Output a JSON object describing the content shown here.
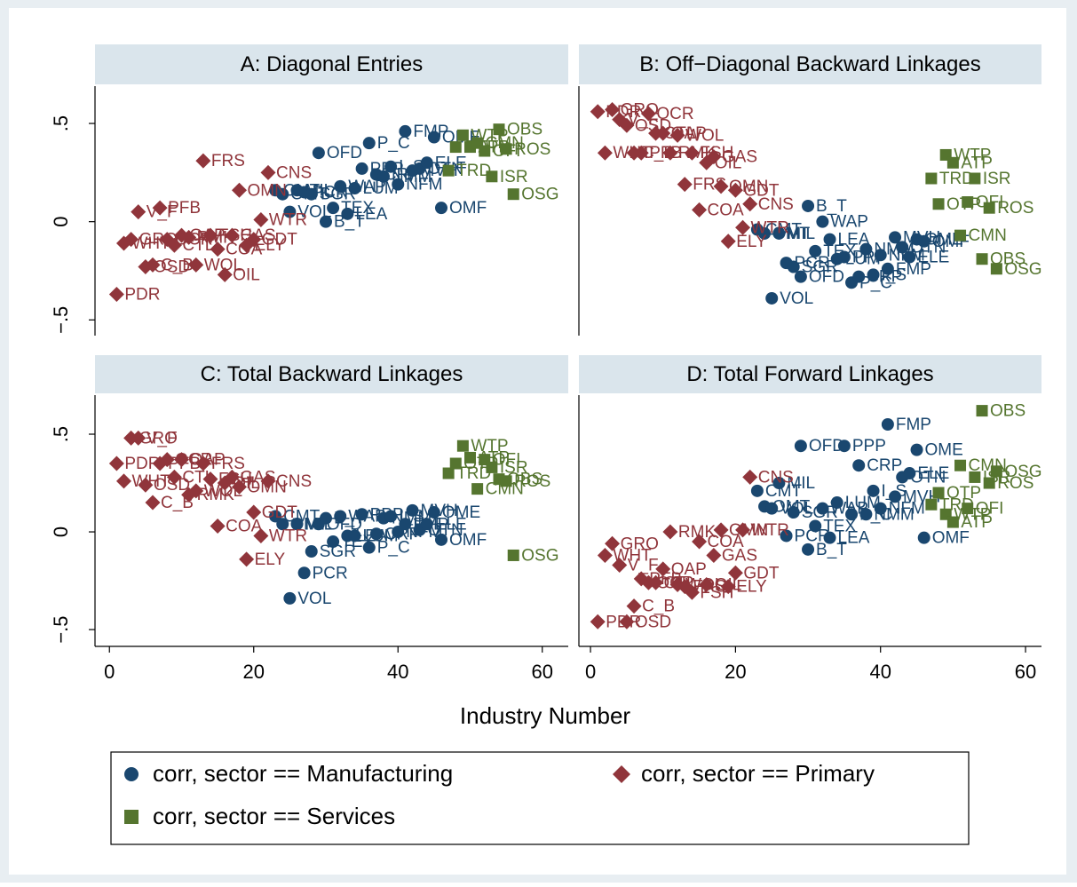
{
  "chart_data": [
    {
      "type": "scatter",
      "title": "A: Diagonal Entries",
      "xlim": [
        -2,
        63.6
      ],
      "ylim": [
        -0.58,
        0.69
      ],
      "yticks": [
        {
          "value": -0.5,
          "label": "−.5"
        },
        0,
        {
          "value": 0.5,
          "label": ".5"
        }
      ],
      "series": [
        {
          "name": "corr, sector == Manufacturing",
          "color": "#1a476f",
          "marker": "circle",
          "x": [
            23,
            24,
            25,
            26,
            27,
            28,
            29,
            30,
            31,
            32,
            33,
            34,
            35,
            36,
            37,
            38,
            39,
            40,
            41,
            42,
            43,
            44,
            45,
            46
          ],
          "values": [
            0.16,
            0.14,
            0.05,
            0.16,
            0.15,
            0.14,
            0.35,
            0,
            0.07,
            0.18,
            0.04,
            0.17,
            0.27,
            0.4,
            0.24,
            0.23,
            0.28,
            0.19,
            0.46,
            0.26,
            0.27,
            0.3,
            0.43,
            0.07
          ],
          "labels": [
            "CMT",
            "OMT",
            "VOL",
            "MIL",
            "PCR",
            "SGR",
            "OFD",
            "B_T",
            "TEX",
            "WAP",
            "LEA",
            "LUM",
            "PPP",
            "P_C",
            "CRP",
            "NMM",
            "I_S",
            "NFM",
            "FMP",
            "MVH",
            "OTN",
            "ELE",
            "OME",
            "OMF"
          ]
        },
        {
          "name": "corr, sector == Primary",
          "color": "#90353b",
          "marker": "diamond",
          "x": [
            1,
            2,
            3,
            4,
            5,
            6,
            7,
            8,
            9,
            10,
            11,
            12,
            13,
            14,
            15,
            16,
            17,
            18,
            19,
            20,
            21,
            22
          ],
          "values": [
            -0.37,
            -0.11,
            -0.09,
            0.05,
            -0.23,
            -0.22,
            0.07,
            -0.09,
            -0.12,
            -0.07,
            -0.08,
            -0.22,
            0.31,
            -0.07,
            -0.14,
            -0.27,
            -0.07,
            0.16,
            -0.12,
            -0.09,
            0.01,
            0.25
          ],
          "labels": [
            "PDR",
            "WHT",
            "GRO",
            "V_F",
            "OSD",
            "C_B",
            "PFB",
            "OCR",
            "CTL",
            "OAP",
            "RMK",
            "WOL",
            "FRS",
            "FSH",
            "COA",
            "OIL",
            "GAS",
            "OMN",
            "ELY",
            "GDT",
            "WTR",
            "CNS"
          ]
        },
        {
          "name": "corr, sector == Services",
          "color": "#55752f",
          "marker": "square",
          "x": [
            47,
            48,
            49,
            50,
            51,
            52,
            53,
            54,
            55,
            56
          ],
          "values": [
            0.26,
            0.38,
            0.44,
            0.38,
            0.4,
            0.36,
            0.23,
            0.47,
            0.37,
            0.14
          ],
          "labels": [
            "TRD",
            "OTP",
            "WTP",
            "ATP",
            "CMN",
            "OFI",
            "ISR",
            "OBS",
            "ROS",
            "OSG"
          ]
        }
      ]
    },
    {
      "type": "scatter",
      "title": "B: Off−Diagonal Backward Linkages",
      "xlim": [
        -1.6,
        62.2
      ],
      "ylim": [
        -0.58,
        0.69
      ],
      "series": [
        {
          "color": "#1a476f",
          "marker": "circle",
          "x": [
            23,
            24,
            25,
            26,
            27,
            28,
            29,
            30,
            31,
            32,
            33,
            34,
            35,
            36,
            37,
            38,
            39,
            40,
            41,
            42,
            43,
            44,
            45,
            46
          ],
          "values": [
            -0.04,
            -0.06,
            -0.39,
            -0.06,
            -0.21,
            -0.23,
            -0.28,
            0.08,
            -0.15,
            0,
            -0.09,
            -0.19,
            -0.18,
            -0.31,
            -0.28,
            -0.14,
            -0.27,
            -0.17,
            -0.24,
            -0.08,
            -0.13,
            -0.18,
            -0.09,
            -0.1
          ],
          "labels": [
            "CMT",
            "OMT",
            "VOL",
            "MIL",
            "PCR",
            "SGR",
            "OFD",
            "B_T",
            "TEX",
            "WAP",
            "LEA",
            "LUM",
            "PPP",
            "P_C",
            "CRP",
            "NMM",
            "I_S",
            "NFM",
            "FMP",
            "MVH",
            "OTN",
            "ELE",
            "OME",
            "OMF"
          ]
        },
        {
          "color": "#90353b",
          "marker": "diamond",
          "x": [
            1,
            2,
            3,
            4,
            5,
            6,
            7,
            8,
            9,
            10,
            11,
            12,
            13,
            14,
            15,
            16,
            17,
            18,
            19,
            20,
            21,
            22
          ],
          "values": [
            0.56,
            0.35,
            0.57,
            0.52,
            0.49,
            0.35,
            0.35,
            0.55,
            0.45,
            0.45,
            0.35,
            0.44,
            0.19,
            0.35,
            0.06,
            0.3,
            0.33,
            0.18,
            -0.1,
            0.16,
            -0.03,
            0.09
          ],
          "labels": [
            "PDR",
            "WHT",
            "GRO",
            "V_F",
            "OSD",
            "C_B",
            "PFB",
            "OCR",
            "CTL",
            "OAP",
            "RMK",
            "WOL",
            "FRS",
            "FSH",
            "COA",
            "OIL",
            "GAS",
            "OMN",
            "ELY",
            "GDT",
            "WTR",
            "CNS"
          ]
        },
        {
          "color": "#55752f",
          "marker": "square",
          "x": [
            47,
            48,
            49,
            50,
            51,
            52,
            53,
            54,
            55,
            56
          ],
          "values": [
            0.22,
            0.09,
            0.34,
            0.3,
            -0.07,
            0.1,
            0.22,
            -0.19,
            0.07,
            -0.24
          ],
          "labels": [
            "TRD",
            "OTP",
            "WTP",
            "ATP",
            "CMN",
            "OFI",
            "ISR",
            "OBS",
            "ROS",
            "OSG"
          ]
        }
      ]
    },
    {
      "type": "scatter",
      "title": "C: Total Backward Linkages",
      "x_label": "Industry Number",
      "xlim": [
        -2,
        63.6
      ],
      "ylim": [
        -0.586,
        0.7
      ],
      "xticks": [
        0,
        20,
        40,
        60
      ],
      "yticks": [
        {
          "value": -0.5,
          "label": "−.5"
        },
        0,
        {
          "value": 0.5,
          "label": ".5"
        }
      ],
      "series": [
        {
          "color": "#1a476f",
          "marker": "circle",
          "x": [
            23,
            24,
            25,
            26,
            27,
            28,
            29,
            30,
            31,
            32,
            33,
            34,
            35,
            36,
            37,
            38,
            39,
            40,
            41,
            42,
            43,
            44,
            45,
            46
          ],
          "values": [
            0.08,
            0.04,
            -0.34,
            0.04,
            -0.21,
            -0.1,
            0.04,
            0.07,
            -0.05,
            0.08,
            -0.02,
            -0.02,
            0.09,
            -0.08,
            -0.01,
            0.07,
            0.08,
            0,
            0.04,
            0.11,
            0.01,
            0.04,
            0.1,
            -0.04
          ],
          "labels": [
            "CMT",
            "OMT",
            "VOL",
            "MIL",
            "PCR",
            "SGR",
            "OFD",
            "B_T",
            "TEX",
            "WAP",
            "LEA",
            "LUM",
            "PPP",
            "P_C",
            "CRP",
            "NMM",
            "I_S",
            "NFM",
            "FMP",
            "MVH",
            "OTN",
            "ELE",
            "OME",
            "OMF"
          ]
        },
        {
          "color": "#90353b",
          "marker": "diamond",
          "x": [
            1,
            2,
            3,
            4,
            5,
            6,
            7,
            8,
            9,
            10,
            11,
            12,
            13,
            14,
            15,
            16,
            17,
            18,
            19,
            20,
            21,
            22
          ],
          "values": [
            0.35,
            0.26,
            0.48,
            0.48,
            0.24,
            0.15,
            0.35,
            0.37,
            0.28,
            0.37,
            0.19,
            0.21,
            0.35,
            0.27,
            0.03,
            0.25,
            0.28,
            0.23,
            -0.14,
            0.1,
            -0.02,
            0.26
          ],
          "labels": [
            "PDR",
            "WHT",
            "GRO",
            "V_F",
            "OSD",
            "C_B",
            "PFB",
            "OCR",
            "CTL",
            "OAP",
            "RMK",
            "WOL",
            "FRS",
            "FSH",
            "COA",
            "OIL",
            "GAS",
            "OMN",
            "ELY",
            "GDT",
            "WTR",
            "CNS"
          ]
        },
        {
          "color": "#55752f",
          "marker": "square",
          "x": [
            47,
            48,
            49,
            50,
            51,
            52,
            53,
            54,
            55,
            56
          ],
          "values": [
            0.3,
            0.35,
            0.44,
            0.38,
            0.22,
            0.37,
            0.33,
            0.27,
            0.26,
            -0.12
          ],
          "labels": [
            "TRD",
            "OTP",
            "WTP",
            "ATP",
            "CMN",
            "OFI",
            "ISR",
            "OBS",
            "ROS",
            "OSG"
          ]
        }
      ]
    },
    {
      "type": "scatter",
      "title": "D: Total Forward Linkages",
      "xlim": [
        -1.6,
        62.2
      ],
      "ylim": [
        -0.586,
        0.7
      ],
      "xticks": [
        0,
        20,
        40,
        60
      ],
      "series": [
        {
          "color": "#1a476f",
          "marker": "circle",
          "x": [
            23,
            24,
            25,
            26,
            27,
            28,
            29,
            30,
            31,
            32,
            33,
            34,
            35,
            36,
            37,
            38,
            39,
            40,
            41,
            42,
            43,
            44,
            45,
            46
          ],
          "values": [
            0.21,
            0.13,
            0.12,
            0.25,
            -0.02,
            0.1,
            0.44,
            -0.09,
            0.03,
            0.12,
            -0.03,
            0.15,
            0.44,
            0.09,
            0.34,
            0.09,
            0.21,
            0.12,
            0.55,
            0.18,
            0.28,
            0.3,
            0.42,
            -0.03
          ],
          "labels": [
            "CMT",
            "OMT",
            "VOL",
            "MIL",
            "PCR",
            "SGR",
            "OFD",
            "B_T",
            "TEX",
            "WAP",
            "LEA",
            "LUM",
            "PPP",
            "P_C",
            "CRP",
            "NMM",
            "I_S",
            "NFM",
            "FMP",
            "MVH",
            "OTN",
            "ELE",
            "OME",
            "OMF"
          ]
        },
        {
          "color": "#90353b",
          "marker": "diamond",
          "x": [
            1,
            2,
            3,
            4,
            5,
            6,
            7,
            8,
            9,
            10,
            11,
            12,
            13,
            14,
            15,
            16,
            17,
            18,
            19,
            20,
            21,
            22
          ],
          "values": [
            -0.46,
            -0.12,
            -0.06,
            -0.17,
            -0.46,
            -0.38,
            -0.24,
            -0.26,
            -0.26,
            -0.19,
            0,
            -0.27,
            -0.28,
            -0.31,
            -0.05,
            -0.27,
            -0.12,
            0.01,
            -0.28,
            -0.21,
            0.01,
            0.28
          ],
          "labels": [
            "PDR",
            "WHT",
            "GRO",
            "V_F",
            "OSD",
            "C_B",
            "PFB",
            "OCR",
            "CTL",
            "OAP",
            "RMK",
            "WOL",
            "FRS",
            "FSH",
            "COA",
            "OIL",
            "GAS",
            "OMN",
            "ELY",
            "GDT",
            "WTR",
            "CNS"
          ]
        },
        {
          "color": "#55752f",
          "marker": "square",
          "x": [
            47,
            48,
            49,
            50,
            51,
            52,
            53,
            54,
            55,
            56
          ],
          "values": [
            0.14,
            0.2,
            0.09,
            0.05,
            0.34,
            0.12,
            0.28,
            0.62,
            0.25,
            0.31
          ],
          "labels": [
            "TRD",
            "OTP",
            "WTP",
            "ATP",
            "CMN",
            "OFI",
            "ISR",
            "OBS",
            "ROS",
            "OSG"
          ]
        }
      ]
    }
  ]
}
